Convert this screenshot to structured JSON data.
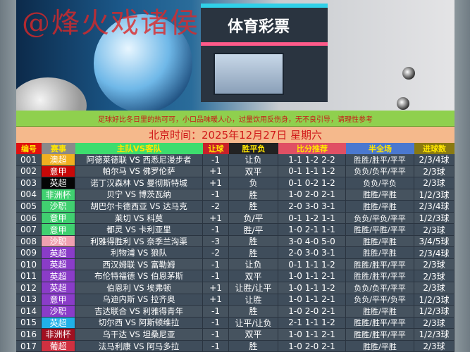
{
  "banner": {
    "watermark": "@烽火戏诸侯",
    "store_sign": "体育彩票"
  },
  "notice": "足球好比冬日里的热可可，小口品味暖人心，过量饮用反伤身，无不良引导，请理性参考",
  "date_line": "北京时间：2025年12月27日  星期六",
  "headers": [
    {
      "label": "编号",
      "color": "#e01010"
    },
    {
      "label": "赛事",
      "color": "#8a8a8a"
    },
    {
      "label": "主队VS客队",
      "color": "#3ddc6e"
    },
    {
      "label": "让球",
      "color": "#c8202a"
    },
    {
      "label": "胜平负",
      "color": "#222222"
    },
    {
      "label": "比分推荐",
      "color": "#e05064"
    },
    {
      "label": "半全场",
      "color": "#4a78d0"
    },
    {
      "label": "进球数",
      "color": "#8a7a10"
    }
  ],
  "rows": [
    {
      "no": "001",
      "league": "澳超",
      "league_color": "#f0b020",
      "match": "阿德莱德联 VS 西悉尼漫步者",
      "handicap": "-1",
      "result": "让负",
      "scores": "1-1 1-2 2-2",
      "half_full": "胜胜/胜平/平平",
      "goals": "2/3/4球"
    },
    {
      "no": "002",
      "league": "意甲",
      "league_color": "#c80808",
      "match": "帕尔马 VS 佛罗伦萨",
      "handicap": "+1",
      "result": "双平",
      "scores": "0-1 1-1 1-2",
      "half_full": "负负/负平/平平",
      "goals": "2/3球"
    },
    {
      "no": "003",
      "league": "英超",
      "league_color": "#050505",
      "match": "诺丁汉森林 VS 曼彻斯特城",
      "handicap": "+1",
      "result": "负",
      "scores": "0-1 0-2 1-2",
      "half_full": "负负/平负",
      "goals": "2/3球"
    },
    {
      "no": "004",
      "league": "非洲杯",
      "league_color": "#40d070",
      "match": "贝宁 VS 博茨瓦纳",
      "handicap": "-1",
      "result": "胜",
      "scores": "1-0 2-0 2-1",
      "half_full": "胜胜/平胜",
      "goals": "1/2/3球"
    },
    {
      "no": "005",
      "league": "沙职",
      "league_color": "#40d070",
      "match": "胡巴尔卡德西亚 VS 达马克",
      "handicap": "-2",
      "result": "胜",
      "scores": "2-0 3-0 3-1",
      "half_full": "胜胜/平胜",
      "goals": "2/3/4球"
    },
    {
      "no": "006",
      "league": "意甲",
      "league_color": "#40d070",
      "match": "莱切 VS 科莫",
      "handicap": "+1",
      "result": "负/平",
      "scores": "0-1 1-2 1-1",
      "half_full": "负负/平负/平平",
      "goals": "1/2/3球"
    },
    {
      "no": "007",
      "league": "意甲",
      "league_color": "#40d070",
      "match": "都灵 VS 卡利亚里",
      "handicap": "-1",
      "result": "胜/平",
      "scores": "1-0 2-1 1-1",
      "half_full": "胜胜/平胜/平平",
      "goals": "2/3球"
    },
    {
      "no": "008",
      "league": "沙职",
      "league_color": "#f0a0b0",
      "match": "利雅得胜利 VS 奈季兰沟渠",
      "handicap": "-3",
      "result": "胜",
      "scores": "3-0 4-0 5-0",
      "half_full": "胜胜/平胜",
      "goals": "3/4/5球"
    },
    {
      "no": "009",
      "league": "英超",
      "league_color": "#8a3cc8",
      "match": "利物浦 VS 狼队",
      "handicap": "-2",
      "result": "胜",
      "scores": "2-0 3-0 3-1",
      "half_full": "胜胜/平胜",
      "goals": "2/3/4球"
    },
    {
      "no": "010",
      "league": "英超",
      "league_color": "#8a3cc8",
      "match": "西汉姆联 VS 富勒姆",
      "handicap": "-1",
      "result": "让负",
      "scores": "0-1 1-1 1-2",
      "half_full": "胜胜/胜平/平平",
      "goals": "2/3球"
    },
    {
      "no": "011",
      "league": "英超",
      "league_color": "#8a3cc8",
      "match": "布伦特福德 VS 伯恩茅斯",
      "handicap": "-1",
      "result": "双平",
      "scores": "1-0 1-1 2-1",
      "half_full": "胜胜/胜平/平平",
      "goals": "2/3球"
    },
    {
      "no": "012",
      "league": "英超",
      "league_color": "#8a3cc8",
      "match": "伯恩利 VS 埃弗顿",
      "handicap": "+1",
      "result": "让胜/让平",
      "scores": "1-0 1-1 1-2",
      "half_full": "负负/负平/平平",
      "goals": "2/3球"
    },
    {
      "no": "013",
      "league": "意甲",
      "league_color": "#8a3cc8",
      "match": "乌迪内斯 VS 拉齐奥",
      "handicap": "+1",
      "result": "让胜",
      "scores": "1-0 1-1 2-1",
      "half_full": "负负/平平/负平",
      "goals": "1/2/3球"
    },
    {
      "no": "014",
      "league": "沙职",
      "league_color": "#8a3cc8",
      "match": "吉达联合 VS 利雅得青年",
      "handicap": "-1",
      "result": "胜",
      "scores": "1-0 2-0 2-1",
      "half_full": "胜胜/平胜",
      "goals": "1/2/3球"
    },
    {
      "no": "015",
      "league": "英超",
      "league_color": "#20b0e8",
      "match": "切尔西 VS 阿斯顿维拉",
      "handicap": "-1",
      "result": "让平/让负",
      "scores": "2-1 1-1 1-2",
      "half_full": "胜胜/胜平/平平",
      "goals": "2/3球"
    },
    {
      "no": "016",
      "league": "非洲杯",
      "league_color": "#a01020",
      "match": "乌干达 VS 坦桑尼亚",
      "handicap": "-1",
      "result": "双平",
      "scores": "1-0 1-1 2-1",
      "half_full": "胜胜/胜平/平平",
      "goals": "1/2/3球"
    },
    {
      "no": "017",
      "league": "葡超",
      "league_color": "#d03040",
      "match": "法马利康 VS 阿马多拉",
      "handicap": "-1",
      "result": "胜",
      "scores": "1-0 2-0 2-1",
      "half_full": "胜胜/平胜",
      "goals": "2/3球"
    }
  ]
}
